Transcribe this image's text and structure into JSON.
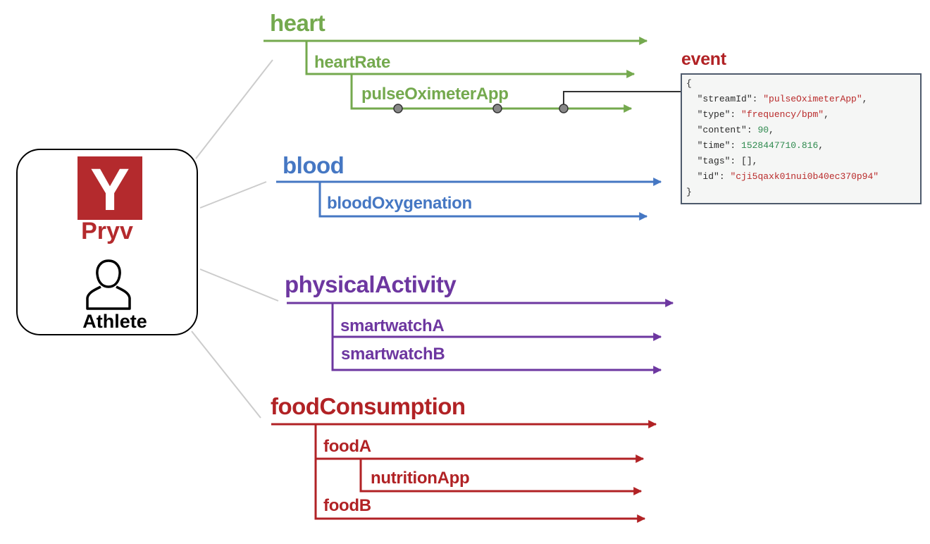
{
  "colors": {
    "heart": "#74a94e",
    "blood": "#4577c3",
    "physicalActivity": "#6d37a0",
    "foodConsumption": "#b12225",
    "connector": "#cccccc",
    "pryv": "#b42a2d"
  },
  "account": {
    "brand": "Pryv",
    "user_label": "Athlete",
    "logo_letter": "Y"
  },
  "streams": {
    "heart": {
      "label": "heart",
      "children": {
        "heartRate": "heartRate",
        "pulseOximeterApp": "pulseOximeterApp"
      }
    },
    "blood": {
      "label": "blood",
      "children": {
        "bloodOxygenation": "bloodOxygenation"
      }
    },
    "physicalActivity": {
      "label": "physicalActivity",
      "children": {
        "smartwatchA": "smartwatchA",
        "smartwatchB": "smartwatchB"
      }
    },
    "foodConsumption": {
      "label": "foodConsumption",
      "children": {
        "foodA": "foodA",
        "nutritionApp": "nutritionApp",
        "foodB": "foodB"
      }
    }
  },
  "event": {
    "title": "event",
    "open_brace": "{",
    "close_brace": "}",
    "fields": [
      {
        "key": "\"streamId\"",
        "value": "\"pulseOximeterApp\"",
        "kind": "str",
        "trail": ","
      },
      {
        "key": "\"type\"",
        "value": "\"frequency/bpm\"",
        "kind": "str",
        "trail": ","
      },
      {
        "key": "\"content\"",
        "value": "90",
        "kind": "num",
        "trail": ","
      },
      {
        "key": "\"time\"",
        "value": "1528447710.816",
        "kind": "num",
        "trail": ","
      },
      {
        "key": "\"tags\"",
        "value": "[]",
        "kind": "plain",
        "trail": ","
      },
      {
        "key": "\"id\"",
        "value": "\"cji5qaxk01nui0b40ec370p94\"",
        "kind": "str",
        "trail": ""
      }
    ]
  }
}
